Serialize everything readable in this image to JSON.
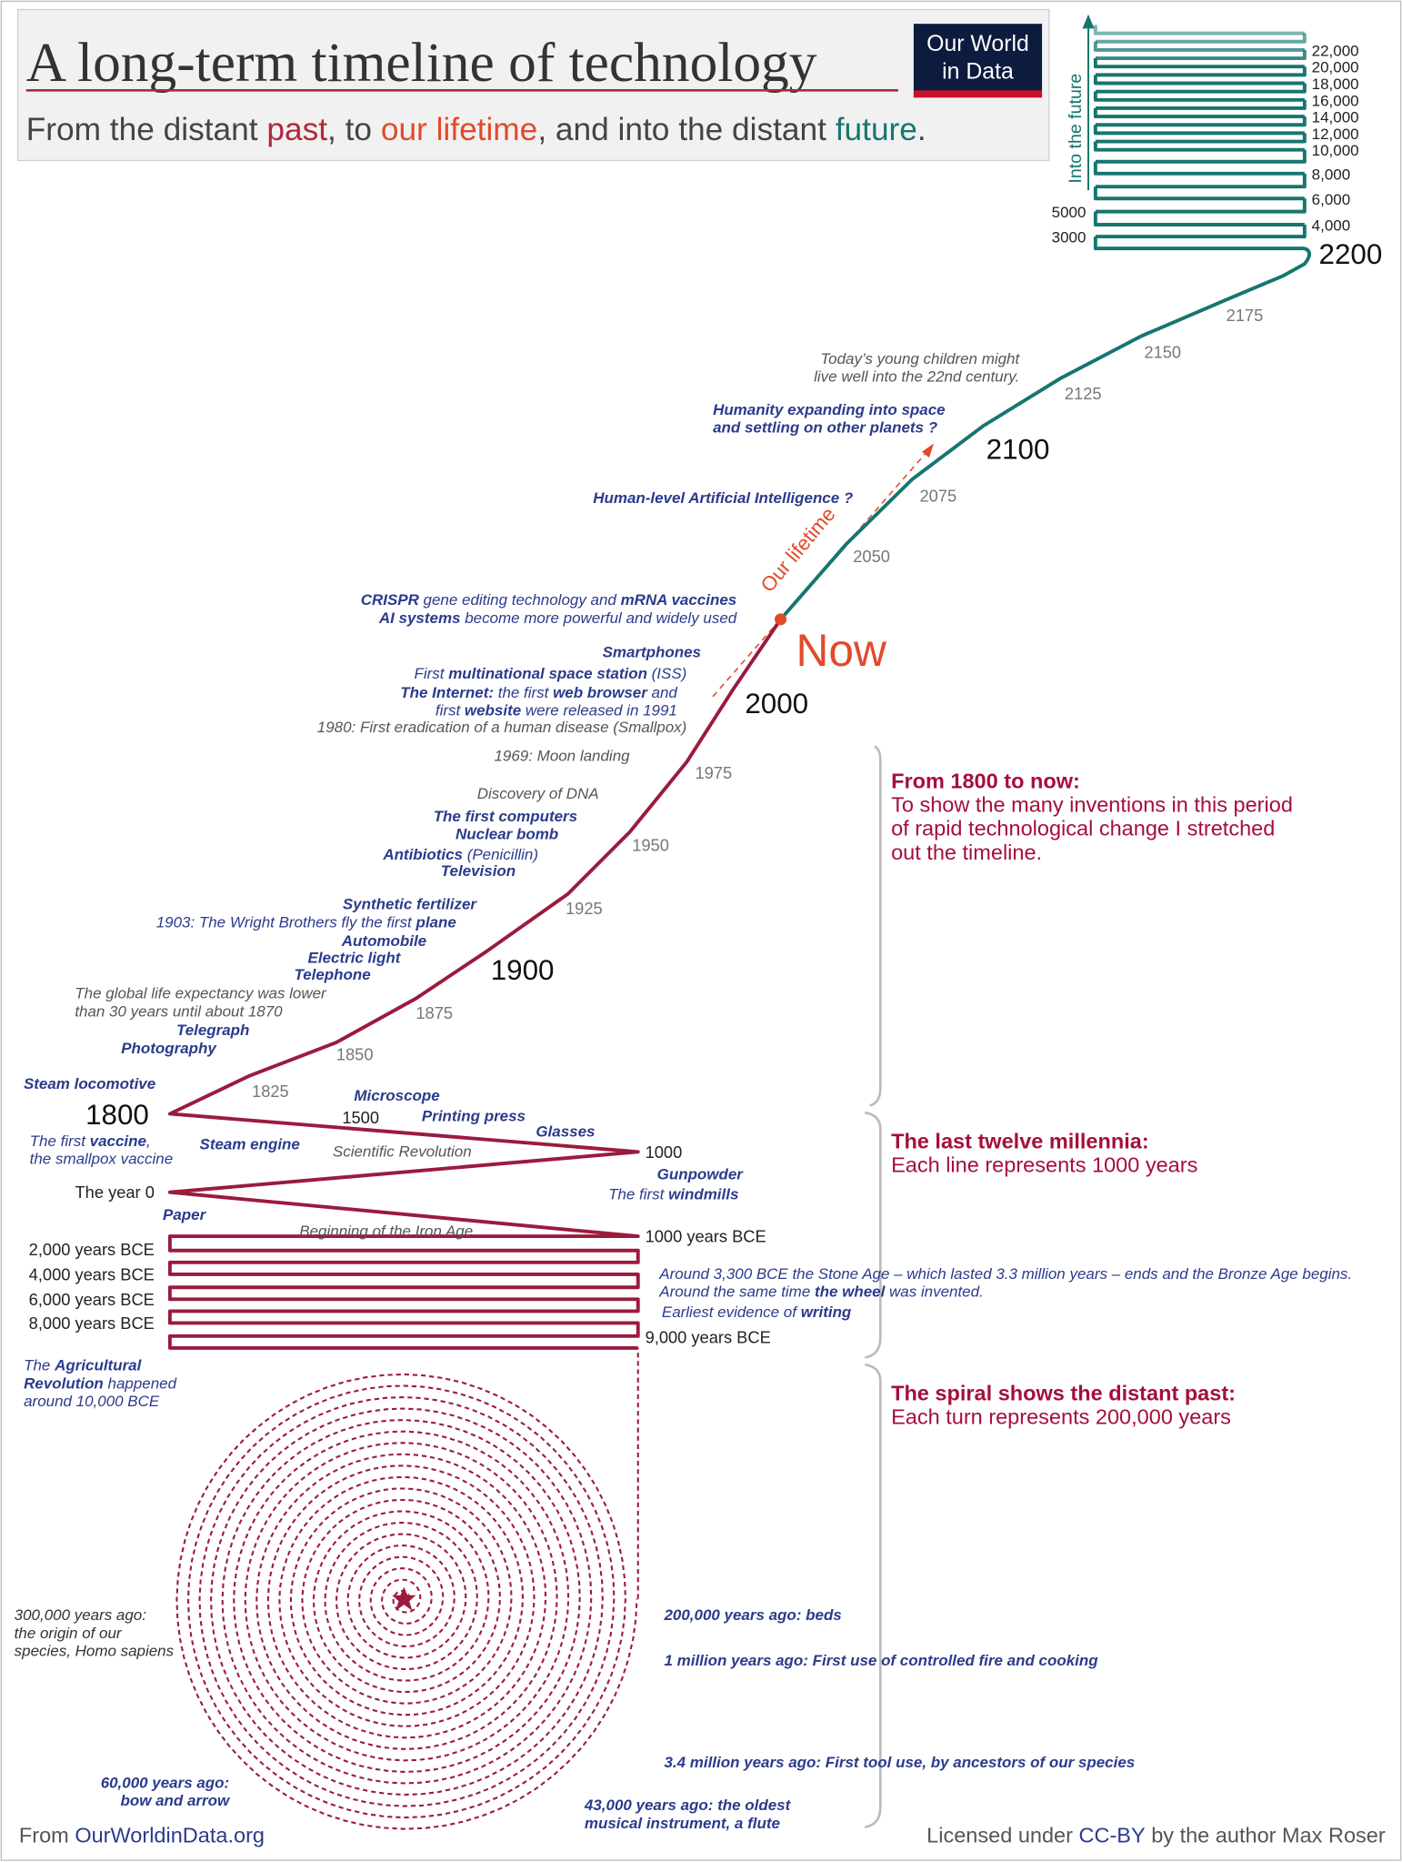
{
  "header": {
    "title": "A long-term timeline of technology",
    "subtitle": [
      "From the distant ",
      {
        "text": "past",
        "color": "#b0283b"
      },
      ", to ",
      {
        "text": "our lifetime",
        "color": "#e24a2b"
      },
      ", and into the distant ",
      {
        "text": "future",
        "color": "#16766f"
      },
      "."
    ],
    "logo": [
      "Our World",
      "in Data"
    ]
  },
  "timeline_labels": {
    "major": [
      "1800",
      "1900",
      "2000",
      "2100",
      "2200"
    ],
    "minor": [
      "1825",
      "1850",
      "1875",
      "1925",
      "1950",
      "1975",
      "2050",
      "2075",
      "2125",
      "2150",
      "2175"
    ],
    "millennia": [
      "1500",
      "1000",
      "The year 0",
      "1000 years BCE",
      "2,000 years BCE",
      "4,000 years BCE",
      "6,000 years BCE",
      "8,000 years BCE",
      "9,000 years BCE"
    ],
    "future_right": [
      "22,000",
      "20,000",
      "18,000",
      "16,000",
      "14,000",
      "12,000",
      "10,000",
      "8,000",
      "6,000",
      "4,000"
    ],
    "future_left": [
      "5000",
      "3000"
    ],
    "now": "Now",
    "our_lifetime": "Our lifetime",
    "into_the_future": "Into the future"
  },
  "annotations": [
    {
      "color": "#2b3b8c",
      "lines": [
        [
          {
            "text": "CRISPR",
            "bold": true
          },
          " gene editing technology and ",
          {
            "text": "mRNA vaccines",
            "bold": true
          }
        ],
        [
          {
            "text": "AI systems",
            "bold": true
          },
          " become more powerful and widely used"
        ]
      ]
    },
    {
      "color": "#2b3b8c",
      "lines": [
        [
          {
            "text": "Smartphones",
            "bold": true
          }
        ]
      ]
    },
    {
      "color": "#2b3b8c",
      "lines": [
        [
          "First ",
          {
            "text": "multinational space station",
            "bold": true
          },
          " (ISS)"
        ]
      ]
    },
    {
      "color": "#2b3b8c",
      "lines": [
        [
          {
            "text": "The Internet:",
            "bold": true
          },
          " the first ",
          {
            "text": "web browser",
            "bold": true
          },
          " and"
        ],
        [
          "first ",
          {
            "text": "website",
            "bold": true
          },
          " were released in 1991"
        ]
      ]
    },
    {
      "color": "#555555",
      "lines": [
        [
          "1980: First eradication of a human disease (Smallpox)"
        ]
      ]
    },
    {
      "color": "#555555",
      "lines": [
        [
          "1969: Moon landing"
        ]
      ]
    },
    {
      "color": "#555555",
      "lines": [
        [
          "Discovery of DNA"
        ]
      ]
    },
    {
      "color": "#2b3b8c",
      "lines": [
        [
          {
            "text": "The first computers",
            "bold": true
          }
        ]
      ]
    },
    {
      "color": "#2b3b8c",
      "lines": [
        [
          {
            "text": "Nuclear bomb",
            "bold": true
          }
        ]
      ]
    },
    {
      "color": "#2b3b8c",
      "lines": [
        [
          {
            "text": "Antibiotics",
            "bold": true
          },
          " (Penicillin)"
        ]
      ]
    },
    {
      "color": "#2b3b8c",
      "lines": [
        [
          {
            "text": "Television",
            "bold": true
          }
        ]
      ]
    },
    {
      "color": "#2b3b8c",
      "lines": [
        [
          {
            "text": "Synthetic fertilizer",
            "bold": true
          }
        ]
      ]
    },
    {
      "color": "#2b3b8c",
      "lines": [
        [
          "1903: The Wright Brothers fly the first ",
          {
            "text": "plane",
            "bold": true
          }
        ]
      ]
    },
    {
      "color": "#2b3b8c",
      "lines": [
        [
          {
            "text": "Automobile",
            "bold": true
          }
        ]
      ]
    },
    {
      "color": "#2b3b8c",
      "lines": [
        [
          {
            "text": "Electric light",
            "bold": true
          }
        ]
      ]
    },
    {
      "color": "#2b3b8c",
      "lines": [
        [
          {
            "text": "Telephone",
            "bold": true
          }
        ]
      ]
    },
    {
      "color": "#555555",
      "lines": [
        [
          "The global life expectancy was lower"
        ],
        [
          "than 30 years until about 1870"
        ]
      ]
    },
    {
      "color": "#2b3b8c",
      "lines": [
        [
          {
            "text": "Telegraph",
            "bold": true
          }
        ]
      ]
    },
    {
      "color": "#2b3b8c",
      "lines": [
        [
          {
            "text": "Photography",
            "bold": true
          }
        ]
      ]
    },
    {
      "color": "#2b3b8c",
      "lines": [
        [
          {
            "text": "Steam locomotive",
            "bold": true
          }
        ]
      ]
    },
    {
      "color": "#2b3b8c",
      "lines": [
        [
          "The first ",
          {
            "text": "vaccine",
            "bold": true
          },
          ","
        ],
        [
          "the smallpox vaccine"
        ]
      ]
    },
    {
      "color": "#2b3b8c",
      "lines": [
        [
          {
            "text": "Steam engine",
            "bold": true
          }
        ]
      ]
    },
    {
      "color": "#2b3b8c",
      "lines": [
        [
          {
            "text": "Microscope",
            "bold": true
          }
        ]
      ]
    },
    {
      "color": "#2b3b8c",
      "lines": [
        [
          {
            "text": "Printing press",
            "bold": true
          }
        ]
      ]
    },
    {
      "color": "#2b3b8c",
      "lines": [
        [
          {
            "text": "Glasses",
            "bold": true
          }
        ]
      ]
    },
    {
      "color": "#555555",
      "lines": [
        [
          "Scientific Revolution"
        ]
      ]
    },
    {
      "color": "#2b3b8c",
      "lines": [
        [
          {
            "text": "Gunpowder",
            "bold": true
          }
        ]
      ]
    },
    {
      "color": "#2b3b8c",
      "lines": [
        [
          "The first ",
          {
            "text": "windmills",
            "bold": true
          }
        ]
      ]
    },
    {
      "color": "#2b3b8c",
      "lines": [
        [
          {
            "text": "Paper",
            "bold": true
          }
        ]
      ]
    },
    {
      "color": "#555555",
      "lines": [
        [
          "Beginning of the Iron Age"
        ]
      ]
    },
    {
      "color": "#2b3b8c",
      "lines": [
        [
          "Around 3,300 BCE the Stone Age – which lasted 3.3 million years – ends and the Bronze Age begins."
        ],
        [
          "Around the same time ",
          {
            "text": "the wheel",
            "bold": true
          },
          " was invented."
        ]
      ]
    },
    {
      "color": "#2b3b8c",
      "lines": [
        [
          "Earliest evidence of ",
          {
            "text": "writing",
            "bold": true
          }
        ]
      ]
    },
    {
      "color": "#2b3b8c",
      "lines": [
        [
          "The ",
          {
            "text": "Agricultural",
            "bold": true
          }
        ],
        [
          {
            "text": "Revolution",
            "bold": true
          },
          " happened"
        ],
        [
          "around 10,000 BCE"
        ]
      ]
    },
    {
      "color": "#333333",
      "lines": [
        [
          "300,000 years ago:"
        ],
        [
          "the origin of our"
        ],
        [
          "species, Homo sapiens"
        ]
      ]
    },
    {
      "color": "#2b3b8c",
      "lines": [
        [
          {
            "text": "200,000 years ago: beds",
            "bold": true
          }
        ]
      ]
    },
    {
      "color": "#2b3b8c",
      "lines": [
        [
          {
            "text": "1 million years ago: First use of controlled fire and cooking",
            "bold": true
          }
        ]
      ]
    },
    {
      "color": "#2b3b8c",
      "lines": [
        [
          {
            "text": "3.4 million years ago: First tool use, by ancestors of our species",
            "bold": true
          }
        ]
      ]
    },
    {
      "color": "#2b3b8c",
      "lines": [
        [
          {
            "text": "60,000 years ago:",
            "bold": true
          }
        ],
        [
          {
            "text": "bow and arrow",
            "bold": true
          }
        ]
      ]
    },
    {
      "color": "#2b3b8c",
      "lines": [
        [
          {
            "text": "43,000 years ago: the oldest",
            "bold": true
          }
        ],
        [
          {
            "text": "musical instrument, a flute",
            "bold": true
          }
        ]
      ]
    },
    {
      "color": "#555555",
      "lines": [
        [
          "Today’s young children might"
        ],
        [
          "live well into the 22nd century."
        ]
      ]
    },
    {
      "color": "#2b3b8c",
      "lines": [
        [
          {
            "text": "Humanity expanding into space",
            "bold": true
          }
        ],
        [
          {
            "text": "and settling on other planets ?",
            "bold": true
          }
        ]
      ]
    },
    {
      "color": "#2b3b8c",
      "lines": [
        [
          {
            "text": "Human-level Artificial Intelligence ?",
            "bold": true
          }
        ]
      ]
    }
  ],
  "sections": [
    {
      "heading": "From 1800 to now:",
      "lines": [
        "To show the many inventions in this period",
        "of rapid technological change I stretched",
        "out the timeline."
      ]
    },
    {
      "heading": "The last twelve millennia:",
      "lines": [
        "Each line represents 1000 years"
      ]
    },
    {
      "heading": "The spiral shows the distant past:",
      "lines": [
        "Each turn represents 200,000 years"
      ]
    }
  ],
  "footer": {
    "left": [
      "From ",
      {
        "text": "OurWorldinData.org",
        "color": "#2b3b8c"
      }
    ],
    "right": [
      "Licensed under ",
      {
        "text": "CC-BY",
        "color": "#2b3b8c"
      },
      " by the author Max Roser"
    ]
  }
}
